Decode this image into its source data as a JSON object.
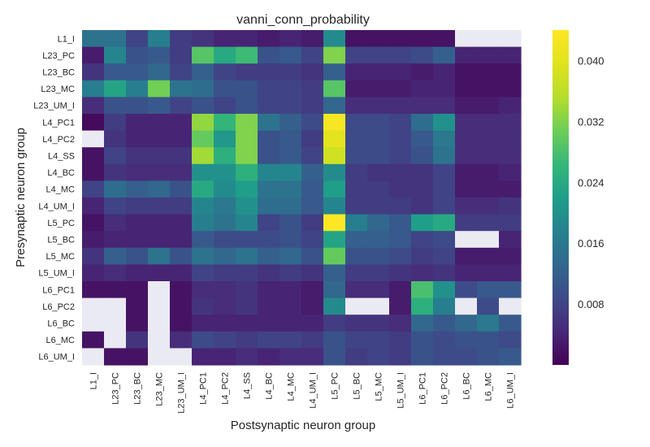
{
  "chart_data": {
    "type": "heatmap",
    "title": "vanni_conn_probability",
    "xlabel": "Postsynaptic neuron group",
    "ylabel": "Presynaptic neuron group",
    "rows": [
      "L1_I",
      "L23_PC",
      "L23_BC",
      "L23_MC",
      "L23_UM_I",
      "L4_PC1",
      "L4_PC2",
      "L4_SS",
      "L4_BC",
      "L4_MC",
      "L4_UM_I",
      "L5_PC",
      "L5_BC",
      "L5_MC",
      "L5_UM_I",
      "L6_PC1",
      "L6_PC2",
      "L6_BC",
      "L6_MC",
      "L6_UM_I"
    ],
    "columns": [
      "L1_I",
      "L23_PC",
      "L23_BC",
      "L23_MC",
      "L23_UM_I",
      "L4_PC1",
      "L4_PC2",
      "L4_SS",
      "L4_BC",
      "L4_MC",
      "L4_UM_I",
      "L5_PC",
      "L5_BC",
      "L5_MC",
      "L5_UM_I",
      "L6_PC1",
      "L6_PC2",
      "L6_BC",
      "L6_MC",
      "L6_UM_I"
    ],
    "values": [
      [
        0.015,
        0.015,
        0.008,
        0.017,
        0.007,
        0.006,
        0.004,
        0.004,
        0.003,
        0.004,
        0.003,
        0.019,
        0.002,
        0.002,
        0.002,
        0.002,
        0.002,
        null,
        null,
        null
      ],
      [
        0.003,
        0.018,
        0.01,
        0.011,
        0.007,
        0.029,
        0.024,
        0.027,
        0.01,
        0.011,
        0.008,
        0.032,
        0.008,
        0.008,
        0.008,
        0.009,
        0.012,
        0.004,
        0.004,
        0.004
      ],
      [
        0.006,
        0.011,
        0.011,
        0.013,
        0.008,
        0.012,
        0.008,
        0.007,
        0.007,
        0.007,
        0.006,
        0.012,
        0.004,
        0.004,
        0.004,
        0.003,
        0.004,
        0.002,
        0.002,
        0.002
      ],
      [
        0.017,
        0.023,
        0.017,
        0.031,
        0.015,
        0.014,
        0.01,
        0.01,
        0.008,
        0.008,
        0.007,
        0.029,
        0.003,
        0.003,
        0.003,
        0.004,
        0.004,
        0.002,
        0.002,
        0.002
      ],
      [
        0.005,
        0.01,
        0.01,
        0.011,
        0.008,
        0.01,
        0.008,
        0.01,
        0.008,
        0.008,
        0.007,
        0.013,
        0.005,
        0.005,
        0.005,
        0.005,
        0.005,
        0.003,
        0.003,
        0.004
      ],
      [
        0.001,
        0.007,
        0.004,
        0.004,
        0.004,
        0.033,
        0.026,
        0.032,
        0.015,
        0.012,
        0.009,
        0.043,
        0.009,
        0.009,
        0.008,
        0.014,
        0.02,
        0.005,
        0.005,
        0.005
      ],
      [
        null,
        0.006,
        0.004,
        0.004,
        0.004,
        0.03,
        0.021,
        0.032,
        0.01,
        0.011,
        0.007,
        0.04,
        0.009,
        0.009,
        0.008,
        0.011,
        0.016,
        0.005,
        0.005,
        0.005
      ],
      [
        0.002,
        0.008,
        0.006,
        0.006,
        0.006,
        0.034,
        0.025,
        0.032,
        0.01,
        0.011,
        0.008,
        0.038,
        0.009,
        0.009,
        0.008,
        0.01,
        0.015,
        0.005,
        0.005,
        0.005
      ],
      [
        0.002,
        0.006,
        0.005,
        0.005,
        0.005,
        0.02,
        0.02,
        0.025,
        0.018,
        0.018,
        0.012,
        0.019,
        0.007,
        0.006,
        0.006,
        0.006,
        0.008,
        0.003,
        0.003,
        0.004
      ],
      [
        0.008,
        0.014,
        0.012,
        0.013,
        0.01,
        0.024,
        0.019,
        0.022,
        0.015,
        0.015,
        0.011,
        0.022,
        0.007,
        0.007,
        0.006,
        0.006,
        0.008,
        0.003,
        0.003,
        0.003
      ],
      [
        0.004,
        0.008,
        0.007,
        0.007,
        0.007,
        0.018,
        0.016,
        0.02,
        0.014,
        0.014,
        0.011,
        0.018,
        0.007,
        0.007,
        0.007,
        0.006,
        0.008,
        0.005,
        0.005,
        0.006
      ],
      [
        0.002,
        0.005,
        0.004,
        0.004,
        0.004,
        0.017,
        0.015,
        0.018,
        0.008,
        0.01,
        0.007,
        0.044,
        0.017,
        0.013,
        0.011,
        0.022,
        0.024,
        0.007,
        0.007,
        0.007
      ],
      [
        0.003,
        0.004,
        0.004,
        0.004,
        0.004,
        0.011,
        0.009,
        0.009,
        0.009,
        0.01,
        0.008,
        0.023,
        0.012,
        0.012,
        0.011,
        0.008,
        0.009,
        null,
        null,
        0.004
      ],
      [
        0.006,
        0.012,
        0.01,
        0.015,
        0.01,
        0.015,
        0.013,
        0.015,
        0.012,
        0.013,
        0.01,
        0.03,
        0.01,
        0.01,
        0.009,
        0.007,
        0.008,
        0.003,
        0.003,
        0.003
      ],
      [
        0.004,
        0.005,
        0.004,
        0.004,
        0.004,
        0.008,
        0.007,
        0.007,
        0.006,
        0.007,
        0.006,
        0.012,
        0.007,
        0.007,
        0.006,
        0.005,
        0.006,
        0.004,
        0.004,
        0.004
      ],
      [
        0.002,
        0.002,
        0.002,
        null,
        0.002,
        0.005,
        0.005,
        0.006,
        0.004,
        0.004,
        0.003,
        0.013,
        0.005,
        0.005,
        0.003,
        0.028,
        0.02,
        0.009,
        0.011,
        0.011
      ],
      [
        null,
        null,
        0.002,
        null,
        0.002,
        0.006,
        0.005,
        0.006,
        0.004,
        0.004,
        0.003,
        0.019,
        null,
        null,
        0.003,
        0.025,
        0.017,
        null,
        0.009,
        null
      ],
      [
        null,
        null,
        0.002,
        null,
        0.002,
        0.004,
        0.004,
        0.004,
        0.004,
        0.004,
        0.004,
        0.007,
        0.006,
        0.006,
        0.005,
        0.013,
        0.011,
        0.013,
        0.016,
        0.011
      ],
      [
        0.002,
        null,
        0.006,
        null,
        0.005,
        0.009,
        0.008,
        0.007,
        0.008,
        0.008,
        0.007,
        0.01,
        0.008,
        0.008,
        0.007,
        0.01,
        0.009,
        0.01,
        0.01,
        0.009
      ],
      [
        null,
        0.002,
        0.002,
        null,
        null,
        0.004,
        0.004,
        0.005,
        0.004,
        0.005,
        0.005,
        0.01,
        0.007,
        0.008,
        0.007,
        0.01,
        0.009,
        0.009,
        0.01,
        0.011
      ]
    ],
    "vmin": 0.0,
    "vmax": 0.044,
    "colormap": "viridis",
    "missing_color": "#eaeaf2",
    "colorbar_ticks": [
      "0.008",
      "0.016",
      "0.024",
      "0.032",
      "0.040"
    ],
    "colorbar_tick_values": [
      0.008,
      0.016,
      0.024,
      0.032,
      0.04
    ],
    "grid": false,
    "colorbar_position": "right"
  }
}
